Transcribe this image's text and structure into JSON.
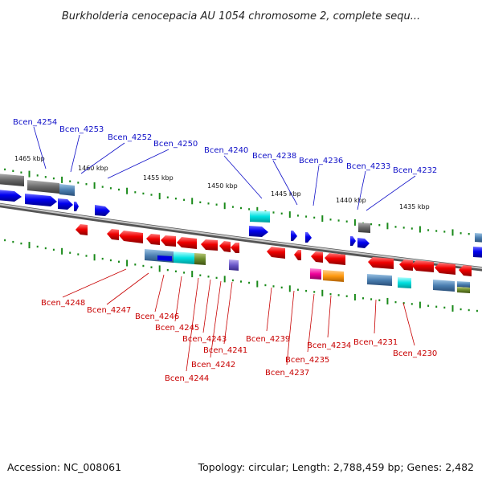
{
  "title": "Burkholderia cenocepacia AU 1054 chromosome 2, complete sequ...",
  "footer": {
    "accession": "Accession: NC_008061",
    "topology": "Topology: circular; Length: 2,788,459 bp; Genes: 2,482"
  },
  "scale_labels": [
    "1465 kbp",
    "1460 kbp",
    "1455 kbp",
    "1450 kbp",
    "1445 kbp",
    "1440 kbp",
    "1435 kbp"
  ],
  "genes_top": [
    "Bcen_4254",
    "Bcen_4253",
    "Bcen_4252",
    "Bcen_4250",
    "Bcen_4240",
    "Bcen_4238",
    "Bcen_4236",
    "Bcen_4233",
    "Bcen_4232"
  ],
  "genes_bottom": [
    "Bcen_4248",
    "Bcen_4247",
    "Bcen_4246",
    "Bcen_4245",
    "Bcen_4243",
    "Bcen_4241",
    "Bcen_4242",
    "Bcen_4244",
    "Bcen_4239",
    "Bcen_4237",
    "Bcen_4235",
    "Bcen_4234",
    "Bcen_4231",
    "Bcen_4230"
  ],
  "colors": {
    "forward_gene": "#0000ee",
    "reverse_gene": "#ee0000",
    "forward_label": "#1010c8",
    "reverse_label": "#c80000",
    "backbone": "#888888",
    "tick_green": "#1a8a1a"
  }
}
